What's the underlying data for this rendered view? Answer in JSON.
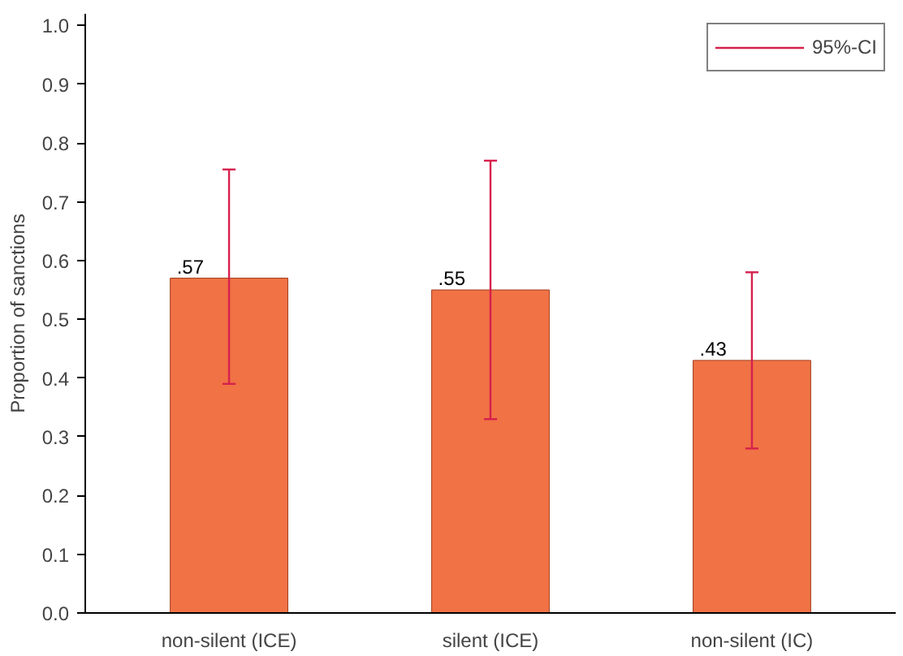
{
  "chart_data": {
    "type": "bar",
    "ylabel": "Proportion of sanctions",
    "categories": [
      "non-silent (ICE)",
      "silent (ICE)",
      "non-silent (IC)"
    ],
    "series": [
      {
        "name": "95%-CI",
        "color": "#f07245",
        "values": [
          0.57,
          0.55,
          0.43
        ],
        "errors": [
          [
            0.39,
            0.755
          ],
          [
            0.33,
            0.77
          ],
          [
            0.28,
            0.58
          ]
        ],
        "value_labels": [
          ".57",
          ".55",
          ".43"
        ]
      }
    ],
    "ylim": [
      0,
      1.02
    ],
    "yticks": [
      {
        "value": 0,
        "label": "0.0"
      },
      {
        "value": 0.1,
        "label": "0.1"
      },
      {
        "value": 0.2,
        "label": "0.2"
      },
      {
        "value": 0.3,
        "label": "0.3"
      },
      {
        "value": 0.4,
        "label": "0.4"
      },
      {
        "value": 0.5,
        "label": "0.5"
      },
      {
        "value": 0.6,
        "label": "0.6"
      },
      {
        "value": 0.7,
        "label": "0.7"
      },
      {
        "value": 0.8,
        "label": "0.8"
      },
      {
        "value": 0.9,
        "label": "0.9"
      },
      {
        "value": 1,
        "label": "1.0"
      }
    ],
    "grid": false,
    "legend": "top right"
  }
}
